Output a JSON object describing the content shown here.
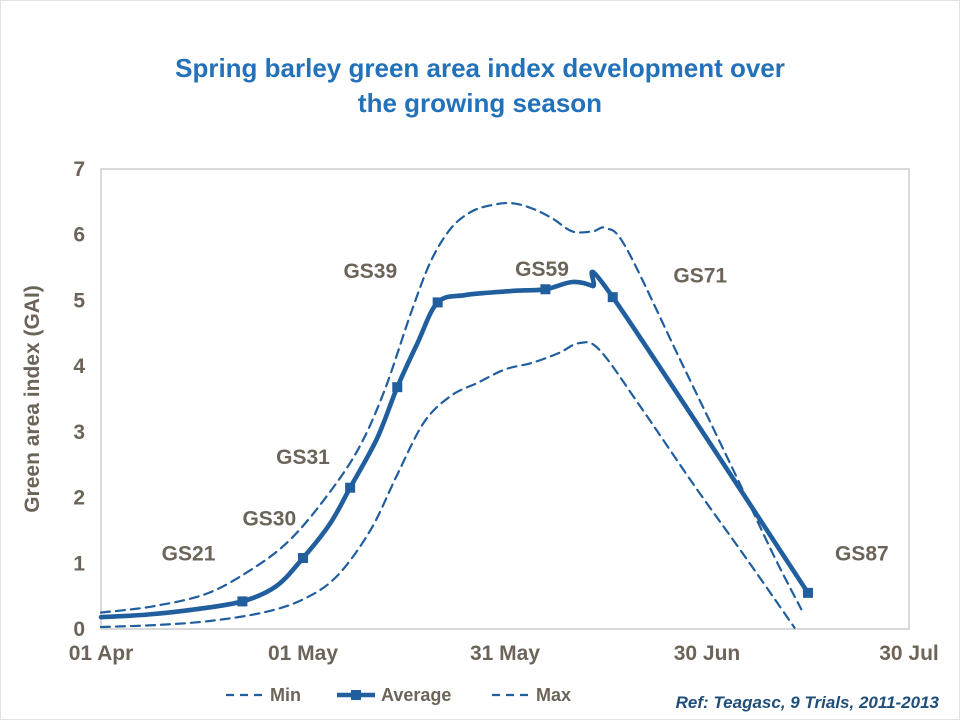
{
  "title": {
    "line1": "Spring barley green area index development over",
    "line2": "the growing season"
  },
  "footnote": "Ref: Teagasc, 9 Trials, 2011-2013",
  "colors": {
    "title": "#2271B9",
    "line": "#205E9E",
    "axis_text": "#6D6459",
    "plot_border": "#C9C9C9",
    "footnote": "#1F4E79"
  },
  "chart_data": {
    "type": "line",
    "title": "Spring barley green area index development over the growing season",
    "xlabel": "",
    "ylabel": "Green area index (GAI)",
    "xlim": [
      0,
      120
    ],
    "ylim": [
      0,
      7
    ],
    "grid": false,
    "legend_position": "bottom",
    "x_unit": "days since 01 Apr",
    "x_ticks": [
      {
        "day": 0,
        "label": "01 Apr"
      },
      {
        "day": 30,
        "label": "01 May"
      },
      {
        "day": 60,
        "label": "31 May"
      },
      {
        "day": 90,
        "label": "30 Jun"
      },
      {
        "day": 120,
        "label": "30 Jul"
      }
    ],
    "y_ticks": [
      0,
      1,
      2,
      3,
      4,
      5,
      6,
      7
    ],
    "series": [
      {
        "name": "Min",
        "style": "dashed",
        "points": [
          [
            0,
            0.03
          ],
          [
            8,
            0.06
          ],
          [
            16,
            0.12
          ],
          [
            24,
            0.25
          ],
          [
            30,
            0.45
          ],
          [
            35,
            0.8
          ],
          [
            40,
            1.5
          ],
          [
            44,
            2.35
          ],
          [
            48,
            3.15
          ],
          [
            52,
            3.55
          ],
          [
            56,
            3.75
          ],
          [
            60,
            3.95
          ],
          [
            64,
            4.05
          ],
          [
            68,
            4.2
          ],
          [
            71,
            4.35
          ],
          [
            74,
            4.25
          ],
          [
            80,
            3.4
          ],
          [
            88,
            2.2
          ],
          [
            96,
            1.05
          ],
          [
            103,
            0.02
          ]
        ]
      },
      {
        "name": "Average",
        "style": "solid",
        "points": [
          [
            0,
            0.18
          ],
          [
            7,
            0.22
          ],
          [
            14,
            0.3
          ],
          [
            21,
            0.42
          ],
          [
            26,
            0.65
          ],
          [
            30,
            1.08
          ],
          [
            34,
            1.6
          ],
          [
            37,
            2.15
          ],
          [
            41,
            2.9
          ],
          [
            44,
            3.68
          ],
          [
            47,
            4.35
          ],
          [
            50,
            4.97
          ],
          [
            54,
            5.08
          ],
          [
            58,
            5.12
          ],
          [
            62,
            5.15
          ],
          [
            66,
            5.17
          ],
          [
            70,
            5.28
          ],
          [
            73,
            5.22
          ],
          [
            76,
            5.05
          ],
          [
            105,
            0.55
          ]
        ],
        "markers": [
          [
            21,
            0.42
          ],
          [
            30,
            1.08
          ],
          [
            37,
            2.15
          ],
          [
            44,
            3.68
          ],
          [
            50,
            4.97
          ],
          [
            66,
            5.17
          ],
          [
            76,
            5.05
          ],
          [
            105,
            0.55
          ]
        ]
      },
      {
        "name": "Max",
        "style": "dashed",
        "points": [
          [
            0,
            0.25
          ],
          [
            8,
            0.35
          ],
          [
            16,
            0.55
          ],
          [
            23,
            0.95
          ],
          [
            28,
            1.35
          ],
          [
            33,
            1.95
          ],
          [
            38,
            2.7
          ],
          [
            42,
            3.6
          ],
          [
            46,
            4.8
          ],
          [
            49,
            5.6
          ],
          [
            52,
            6.1
          ],
          [
            55,
            6.35
          ],
          [
            58,
            6.45
          ],
          [
            61,
            6.48
          ],
          [
            64,
            6.4
          ],
          [
            67,
            6.25
          ],
          [
            70,
            6.05
          ],
          [
            73,
            6.05
          ],
          [
            75,
            6.1
          ],
          [
            78,
            5.8
          ],
          [
            86,
            4.1
          ],
          [
            94,
            2.4
          ],
          [
            100,
            1.1
          ],
          [
            104,
            0.3
          ]
        ]
      }
    ],
    "annotations": [
      {
        "label": "GS21",
        "day": 13,
        "value": 1.15
      },
      {
        "label": "GS30",
        "day": 25,
        "value": 1.68
      },
      {
        "label": "GS31",
        "day": 30,
        "value": 2.62
      },
      {
        "label": "GS39",
        "day": 40,
        "value": 5.45
      },
      {
        "label": "GS59",
        "day": 65.5,
        "value": 5.48
      },
      {
        "label": "GS71",
        "day": 89,
        "value": 5.38
      },
      {
        "label": "GS87",
        "day": 113,
        "value": 1.15
      }
    ],
    "legend": [
      {
        "label": "Min",
        "style": "dashed"
      },
      {
        "label": "Average",
        "style": "solid_marker"
      },
      {
        "label": "Max",
        "style": "dashed"
      }
    ]
  }
}
